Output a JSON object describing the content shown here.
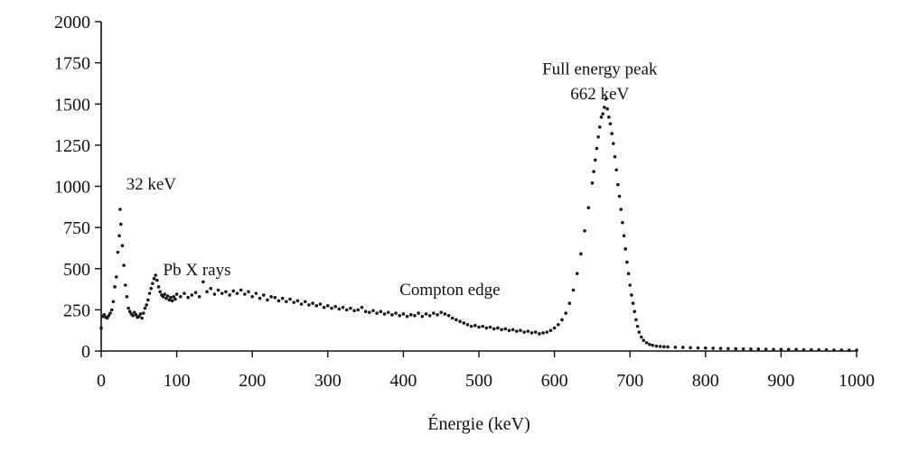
{
  "chart_data": {
    "type": "scatter",
    "title": "",
    "xlabel": "Énergie (keV)",
    "ylabel": "",
    "xlim": [
      0,
      1000
    ],
    "ylim": [
      0,
      2000
    ],
    "xticks": [
      0,
      100,
      200,
      300,
      400,
      500,
      600,
      700,
      800,
      900,
      1000
    ],
    "yticks": [
      0,
      250,
      500,
      750,
      1000,
      1250,
      1500,
      1750,
      2000
    ],
    "grid": false,
    "legend": "none",
    "marker_color": "#1a1a1a",
    "annotations": [
      {
        "text": "32 keV",
        "x": 33,
        "y": 980
      },
      {
        "text": "Pb X rays",
        "x": 82,
        "y": 460
      },
      {
        "text": "Compton edge",
        "x": 395,
        "y": 340
      },
      {
        "text": "Full energy peak",
        "x": 660,
        "y": 1680
      },
      {
        "text": "662 keV",
        "x": 660,
        "y": 1530
      }
    ],
    "series": [
      {
        "name": "",
        "points": [
          [
            0,
            140
          ],
          [
            2,
            210
          ],
          [
            4,
            220
          ],
          [
            6,
            205
          ],
          [
            8,
            200
          ],
          [
            10,
            215
          ],
          [
            12,
            230
          ],
          [
            14,
            250
          ],
          [
            16,
            300
          ],
          [
            18,
            390
          ],
          [
            20,
            450
          ],
          [
            22,
            600
          ],
          [
            24,
            700
          ],
          [
            25,
            860
          ],
          [
            26,
            770
          ],
          [
            28,
            640
          ],
          [
            30,
            520
          ],
          [
            32,
            400
          ],
          [
            34,
            330
          ],
          [
            36,
            260
          ],
          [
            38,
            240
          ],
          [
            40,
            225
          ],
          [
            42,
            215
          ],
          [
            44,
            235
          ],
          [
            46,
            220
          ],
          [
            48,
            205
          ],
          [
            50,
            210
          ],
          [
            52,
            225
          ],
          [
            54,
            200
          ],
          [
            56,
            230
          ],
          [
            58,
            260
          ],
          [
            60,
            280
          ],
          [
            62,
            310
          ],
          [
            64,
            350
          ],
          [
            66,
            380
          ],
          [
            68,
            410
          ],
          [
            70,
            440
          ],
          [
            72,
            460
          ],
          [
            74,
            430
          ],
          [
            76,
            390
          ],
          [
            78,
            360
          ],
          [
            80,
            340
          ],
          [
            82,
            330
          ],
          [
            84,
            345
          ],
          [
            86,
            320
          ],
          [
            88,
            335
          ],
          [
            90,
            310
          ],
          [
            92,
            325
          ],
          [
            94,
            305
          ],
          [
            96,
            330
          ],
          [
            98,
            315
          ],
          [
            100,
            345
          ],
          [
            105,
            330
          ],
          [
            110,
            350
          ],
          [
            115,
            325
          ],
          [
            120,
            340
          ],
          [
            125,
            355
          ],
          [
            130,
            330
          ],
          [
            135,
            420
          ],
          [
            140,
            360
          ],
          [
            145,
            380
          ],
          [
            150,
            345
          ],
          [
            155,
            370
          ],
          [
            160,
            350
          ],
          [
            165,
            360
          ],
          [
            170,
            340
          ],
          [
            175,
            365
          ],
          [
            180,
            350
          ],
          [
            185,
            370
          ],
          [
            190,
            345
          ],
          [
            195,
            360
          ],
          [
            200,
            330
          ],
          [
            205,
            350
          ],
          [
            210,
            320
          ],
          [
            215,
            340
          ],
          [
            220,
            310
          ],
          [
            225,
            330
          ],
          [
            230,
            325
          ],
          [
            235,
            305
          ],
          [
            240,
            320
          ],
          [
            245,
            300
          ],
          [
            250,
            315
          ],
          [
            255,
            295
          ],
          [
            260,
            305
          ],
          [
            265,
            285
          ],
          [
            270,
            300
          ],
          [
            275,
            280
          ],
          [
            280,
            290
          ],
          [
            285,
            275
          ],
          [
            290,
            285
          ],
          [
            295,
            265
          ],
          [
            300,
            275
          ],
          [
            305,
            260
          ],
          [
            310,
            270
          ],
          [
            315,
            255
          ],
          [
            320,
            265
          ],
          [
            325,
            250
          ],
          [
            330,
            260
          ],
          [
            335,
            245
          ],
          [
            340,
            250
          ],
          [
            345,
            265
          ],
          [
            350,
            240
          ],
          [
            355,
            235
          ],
          [
            360,
            245
          ],
          [
            365,
            230
          ],
          [
            370,
            240
          ],
          [
            375,
            225
          ],
          [
            380,
            235
          ],
          [
            385,
            220
          ],
          [
            390,
            230
          ],
          [
            395,
            215
          ],
          [
            400,
            225
          ],
          [
            405,
            210
          ],
          [
            410,
            220
          ],
          [
            415,
            215
          ],
          [
            420,
            230
          ],
          [
            425,
            210
          ],
          [
            430,
            225
          ],
          [
            435,
            215
          ],
          [
            440,
            230
          ],
          [
            445,
            220
          ],
          [
            450,
            235
          ],
          [
            455,
            225
          ],
          [
            460,
            215
          ],
          [
            465,
            200
          ],
          [
            470,
            190
          ],
          [
            475,
            180
          ],
          [
            480,
            170
          ],
          [
            485,
            160
          ],
          [
            490,
            150
          ],
          [
            495,
            155
          ],
          [
            500,
            145
          ],
          [
            505,
            150
          ],
          [
            510,
            140
          ],
          [
            515,
            145
          ],
          [
            520,
            135
          ],
          [
            525,
            140
          ],
          [
            530,
            130
          ],
          [
            535,
            135
          ],
          [
            540,
            125
          ],
          [
            545,
            130
          ],
          [
            550,
            120
          ],
          [
            555,
            125
          ],
          [
            560,
            115
          ],
          [
            565,
            120
          ],
          [
            570,
            110
          ],
          [
            575,
            115
          ],
          [
            580,
            105
          ],
          [
            585,
            110
          ],
          [
            590,
            115
          ],
          [
            595,
            125
          ],
          [
            600,
            140
          ],
          [
            605,
            160
          ],
          [
            610,
            190
          ],
          [
            615,
            230
          ],
          [
            620,
            290
          ],
          [
            625,
            370
          ],
          [
            630,
            470
          ],
          [
            635,
            590
          ],
          [
            640,
            730
          ],
          [
            645,
            870
          ],
          [
            650,
            1020
          ],
          [
            652,
            1090
          ],
          [
            654,
            1160
          ],
          [
            656,
            1230
          ],
          [
            658,
            1300
          ],
          [
            660,
            1360
          ],
          [
            662,
            1420
          ],
          [
            664,
            1440
          ],
          [
            666,
            1480
          ],
          [
            668,
            1530
          ],
          [
            670,
            1470
          ],
          [
            672,
            1420
          ],
          [
            674,
            1380
          ],
          [
            676,
            1320
          ],
          [
            678,
            1260
          ],
          [
            680,
            1180
          ],
          [
            682,
            1100
          ],
          [
            684,
            1010
          ],
          [
            686,
            940
          ],
          [
            688,
            860
          ],
          [
            690,
            780
          ],
          [
            692,
            700
          ],
          [
            694,
            620
          ],
          [
            696,
            540
          ],
          [
            698,
            470
          ],
          [
            700,
            400
          ],
          [
            702,
            340
          ],
          [
            704,
            290
          ],
          [
            706,
            240
          ],
          [
            708,
            190
          ],
          [
            710,
            150
          ],
          [
            712,
            115
          ],
          [
            715,
            85
          ],
          [
            718,
            65
          ],
          [
            722,
            50
          ],
          [
            726,
            40
          ],
          [
            730,
            35
          ],
          [
            735,
            30
          ],
          [
            740,
            28
          ],
          [
            745,
            26
          ],
          [
            750,
            25
          ],
          [
            760,
            23
          ],
          [
            770,
            22
          ],
          [
            780,
            20
          ],
          [
            790,
            19
          ],
          [
            800,
            18
          ],
          [
            810,
            17
          ],
          [
            820,
            16
          ],
          [
            830,
            15
          ],
          [
            840,
            14
          ],
          [
            850,
            13
          ],
          [
            860,
            12
          ],
          [
            870,
            12
          ],
          [
            880,
            11
          ],
          [
            890,
            10
          ],
          [
            900,
            10
          ],
          [
            910,
            9
          ],
          [
            920,
            9
          ],
          [
            930,
            8
          ],
          [
            940,
            8
          ],
          [
            950,
            7
          ],
          [
            960,
            7
          ],
          [
            970,
            6
          ],
          [
            980,
            6
          ],
          [
            990,
            5
          ],
          [
            1000,
            5
          ]
        ]
      }
    ]
  }
}
